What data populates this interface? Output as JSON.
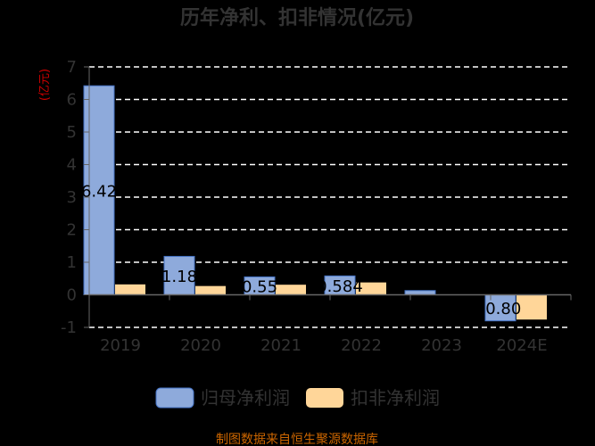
{
  "chart_data": {
    "type": "bar",
    "title": "历年净利、扣非情况(亿元)",
    "ylabel": "(亿元)",
    "categories": [
      "2019",
      "2020",
      "2021",
      "2022",
      "2023",
      "2024E"
    ],
    "series": [
      {
        "name": "归母净利润",
        "color": "#8eaadb",
        "values": [
          6.42,
          1.18,
          0.55,
          0.58,
          0.13,
          -0.8
        ],
        "labels": [
          "6.42",
          "1.18",
          "0.55",
          "0.584",
          "",
          "-0.80"
        ]
      },
      {
        "name": "扣非净利润",
        "color": "#ffd699",
        "values": [
          0.32,
          0.27,
          0.31,
          0.38,
          0.0,
          -0.76
        ],
        "labels": []
      }
    ],
    "ylim": [
      -1,
      7
    ],
    "yticks": [
      -1,
      0,
      1,
      2,
      3,
      4,
      5,
      6,
      7
    ],
    "grid": true,
    "legend_position": "bottom-center"
  },
  "source": "制图数据来自恒生聚源数据库"
}
